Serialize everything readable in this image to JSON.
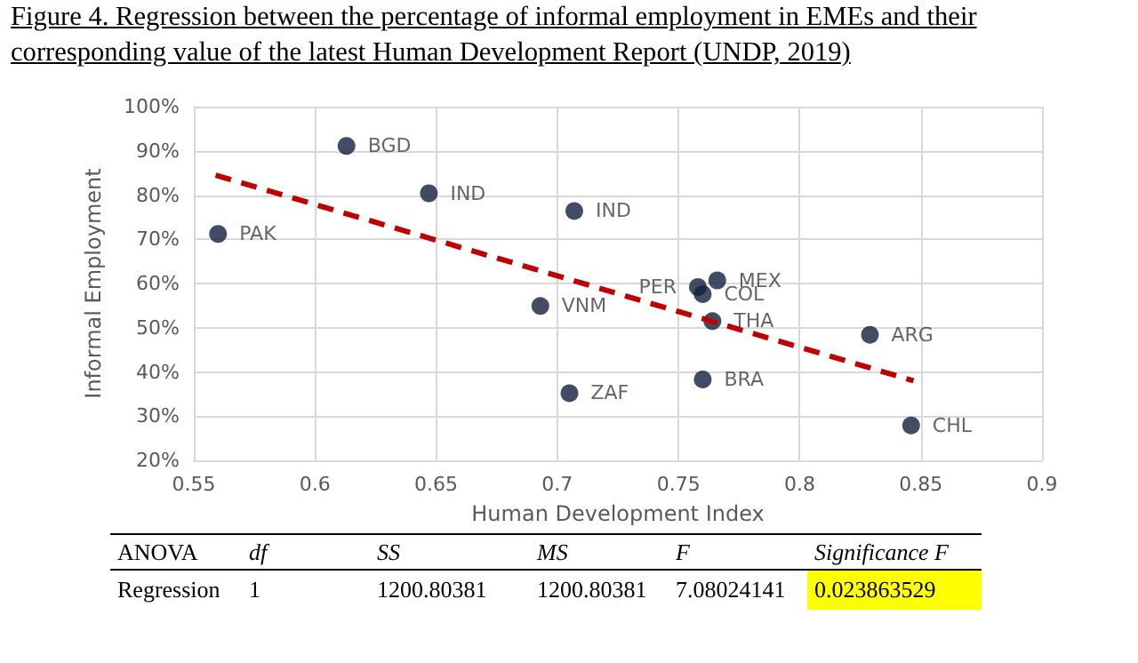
{
  "chart_data": {
    "type": "scatter",
    "title": "Figure 4. Regression between the percentage of informal employment in EMEs and their corresponding value of the latest Human Development Report (UNDP, 2019)",
    "xlabel": "Human Development Index",
    "ylabel": "Informal Employment",
    "xlim": [
      0.55,
      0.9
    ],
    "xticks": [
      0.55,
      0.6,
      0.65,
      0.7,
      0.75,
      0.8,
      0.85,
      0.9
    ],
    "ylim": [
      20,
      100
    ],
    "yticks": [
      {
        "value": 20,
        "label": "20%"
      },
      {
        "value": 30,
        "label": "30%"
      },
      {
        "value": 40,
        "label": "40%"
      },
      {
        "value": 50,
        "label": "50%"
      },
      {
        "value": 60,
        "label": "60%"
      },
      {
        "value": 70,
        "label": "70%"
      },
      {
        "value": 80,
        "label": "80%"
      },
      {
        "value": 90,
        "label": "90%"
      },
      {
        "value": 100,
        "label": "100%"
      }
    ],
    "grid": true,
    "marker": "circle",
    "series": [
      {
        "color": "#13213d",
        "x": [
          0.56,
          0.613,
          0.647,
          0.707,
          0.693,
          0.705,
          0.758,
          0.766,
          0.76,
          0.764,
          0.76,
          0.829,
          0.846
        ],
        "values": [
          71.2,
          91.1,
          80.4,
          76.4,
          54.9,
          35.2,
          59.2,
          60.7,
          57.6,
          51.5,
          38.3,
          48.4,
          27.9
        ]
      },
      {
        "type": "line",
        "color": "#c00000",
        "line_style": "dashed",
        "marker": "none",
        "x": [
          0.559,
          0.847
        ],
        "values": [
          84.5,
          38.0
        ]
      }
    ],
    "annotations": [
      {
        "text": "PAK",
        "x": 0.56,
        "y": 71.2
      },
      {
        "text": "BGD",
        "x": 0.613,
        "y": 91.1
      },
      {
        "text": "IND",
        "x": 0.647,
        "y": 80.4
      },
      {
        "text": "IND",
        "x": 0.707,
        "y": 76.4
      },
      {
        "text": "VNM",
        "x": 0.693,
        "y": 54.9
      },
      {
        "text": "ZAF",
        "x": 0.705,
        "y": 35.2
      },
      {
        "text": "PER",
        "x": 0.758,
        "y": 59.2
      },
      {
        "text": "MEX",
        "x": 0.766,
        "y": 60.7
      },
      {
        "text": "COL",
        "x": 0.76,
        "y": 57.6
      },
      {
        "text": "THA",
        "x": 0.764,
        "y": 51.5
      },
      {
        "text": "BRA",
        "x": 0.76,
        "y": 38.3
      },
      {
        "text": "ARG",
        "x": 0.829,
        "y": 48.4
      },
      {
        "text": "CHL",
        "x": 0.846,
        "y": 27.9
      },
      "ANOVA",
      "df",
      "SS",
      "MS",
      "F",
      "Significance F",
      "Regression",
      "1",
      "1200.80381",
      "1200.80381",
      "7.08024141",
      "0.023863529"
    ]
  }
}
